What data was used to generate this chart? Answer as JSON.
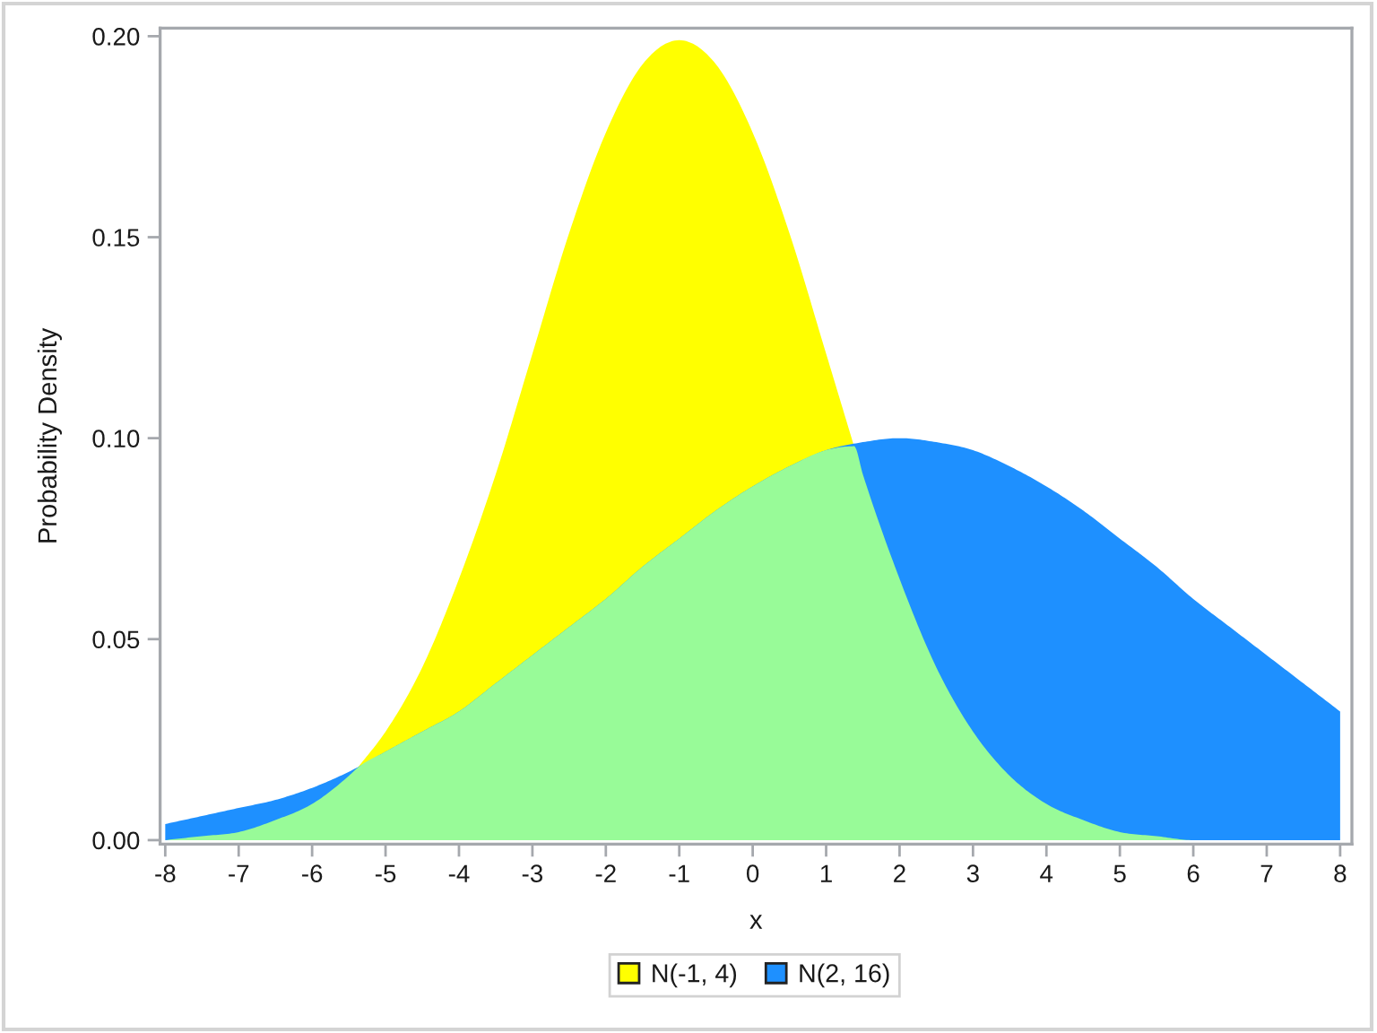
{
  "chart_data": {
    "type": "area",
    "xlabel": "x",
    "ylabel": "Probability Density",
    "legend": "bottom",
    "xlim": [
      -8.07,
      8.16
    ],
    "ylim": [
      -0.001,
      0.202
    ],
    "xticks": [
      -8,
      -7,
      -6,
      -5,
      -4,
      -3,
      -2,
      -1,
      0,
      1,
      2,
      3,
      4,
      5,
      6,
      7,
      8
    ],
    "yticks": [
      {
        "value": 0,
        "label": "0.00"
      },
      0.05,
      {
        "value": 0.1,
        "label": "0.10"
      },
      0.15,
      {
        "value": 0.2,
        "label": "0.20"
      }
    ],
    "x": [
      -8,
      -7.5,
      -7,
      -6.5,
      -6,
      -5.5,
      -5,
      -4.5,
      -4,
      -3.5,
      -3,
      -2.5,
      -2,
      -1.5,
      -1,
      -0.5,
      0,
      0.5,
      1,
      1.5,
      2,
      2.5,
      3,
      3.5,
      4,
      4.5,
      5,
      5.5,
      6,
      6.5,
      7,
      7.5,
      8
    ],
    "series": [
      {
        "name": "N(-1, 4)",
        "color": "#ffff00",
        "x": [
          -5.38,
          -5,
          -4.5,
          -4,
          -3.5,
          -3,
          -2.5,
          -2,
          -1.5,
          -1,
          -0.5,
          0,
          0.5,
          1,
          1.38
        ],
        "values": [
          0.018,
          0.027,
          0.043,
          0.065,
          0.091,
          0.121,
          0.151,
          0.176,
          0.193,
          0.199,
          0.193,
          0.176,
          0.151,
          0.121,
          0.098
        ]
      },
      {
        "name": "N(2, 16)",
        "color": "#1e90ff",
        "values": [
          0.004,
          0.006,
          0.008,
          0.01,
          0.013,
          0.017,
          0.022,
          0.027,
          0.032,
          0.039,
          0.046,
          0.053,
          0.06,
          0.068,
          0.075,
          0.082,
          0.088,
          0.093,
          0.097,
          0.099,
          0.1,
          0.099,
          0.097,
          0.093,
          0.088,
          0.082,
          0.075,
          0.068,
          0.06,
          0.053,
          0.046,
          0.039,
          0.032
        ]
      },
      {
        "color": "#98fb98",
        "x": [
          -8,
          -7.5,
          -7,
          -6.5,
          -6,
          -5.5,
          -5.38,
          -5,
          -4.5,
          -4,
          -3.5,
          -3,
          -2.5,
          -2,
          -1.5,
          -1,
          -0.5,
          0,
          0.5,
          1,
          1.38,
          1.5,
          2,
          2.5,
          3,
          3.5,
          4,
          4.5,
          5,
          5.5,
          6,
          6.5,
          7,
          7.5,
          8
        ],
        "values": [
          0.0,
          0.001,
          0.002,
          0.005,
          0.009,
          0.016,
          0.018,
          0.022,
          0.027,
          0.032,
          0.039,
          0.046,
          0.053,
          0.06,
          0.068,
          0.075,
          0.082,
          0.088,
          0.093,
          0.097,
          0.098,
          0.091,
          0.065,
          0.043,
          0.027,
          0.016,
          0.009,
          0.005,
          0.002,
          0.001,
          0.0,
          0.0,
          0.0,
          0.0,
          0.0
        ]
      }
    ]
  }
}
